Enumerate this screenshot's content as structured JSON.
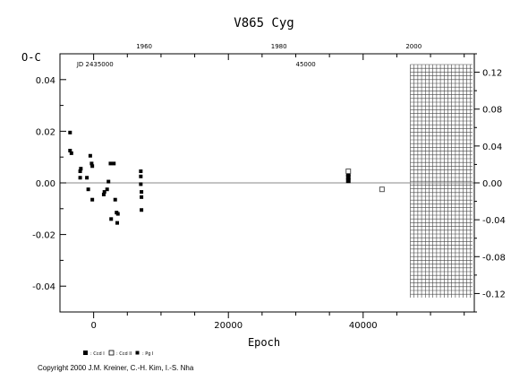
{
  "chart_data": {
    "type": "scatter",
    "title": "V865 Cyg",
    "xlabel": "Epoch",
    "ylabel": "O-C",
    "xlim": [
      -5000,
      56500
    ],
    "ylim": [
      -0.05,
      0.05
    ],
    "x_ticks": [
      0,
      20000,
      40000
    ],
    "y_ticks_left": [
      -0.04,
      -0.02,
      0.0,
      0.02,
      0.04
    ],
    "y_tick_labels_left": [
      "-0.04",
      "-0.02",
      "0.00",
      "0.02",
      "0.04"
    ],
    "right_axis_ylim": [
      -0.14,
      0.14
    ],
    "y_ticks_right": [
      -0.12,
      -0.08,
      -0.04,
      0.0,
      0.04,
      0.08,
      0.12
    ],
    "y_tick_labels_right": [
      "-0.12",
      "-0.08",
      "-0.04",
      "0.00",
      "0.04",
      "0.08",
      "0.12"
    ],
    "top_axis_labels": [
      {
        "label": "1960",
        "epoch": 7500
      },
      {
        "label": "1980",
        "epoch": 27500
      },
      {
        "label": "2000",
        "epoch": 47500
      }
    ],
    "top_axis_note": "JD 2435000",
    "top_axis_note_epoch": -2500,
    "top_axis_note2": "45000",
    "top_axis_note2_epoch": 30000,
    "hatched_region_start": 47000,
    "zero_line": 0.0,
    "grid": false,
    "legend": {
      "placement": "bottom-left",
      "entries": [
        {
          "marker": "filled-square",
          "label": ": Ccd I"
        },
        {
          "marker": "open-square",
          "label": ": Ccd II"
        },
        {
          "marker": "small-square",
          "label": ": Pg I"
        }
      ]
    },
    "series": [
      {
        "name": ": Pg I",
        "marker": "small-square",
        "points": [
          [
            -3500,
            0.0195
          ],
          [
            -3500,
            0.0125
          ],
          [
            -3300,
            0.0115
          ],
          [
            -2000,
            0.0045
          ],
          [
            -2000,
            0.002
          ],
          [
            -1900,
            0.0055
          ],
          [
            -1000,
            0.002
          ],
          [
            -800,
            -0.0025
          ],
          [
            -500,
            0.0105
          ],
          [
            -300,
            0.0075
          ],
          [
            -200,
            0.0065
          ],
          [
            -200,
            -0.0065
          ],
          [
            1500,
            -0.0045
          ],
          [
            1600,
            -0.0035
          ],
          [
            2000,
            -0.0025
          ],
          [
            2200,
            0.0005
          ],
          [
            2500,
            0.0075
          ],
          [
            2600,
            -0.014
          ],
          [
            3000,
            0.0075
          ],
          [
            3200,
            -0.0065
          ],
          [
            3400,
            -0.0115
          ],
          [
            3500,
            -0.0155
          ],
          [
            3600,
            -0.012
          ],
          [
            7000,
            0.0045
          ],
          [
            7000,
            0.0025
          ],
          [
            7000,
            -0.0005
          ],
          [
            7100,
            -0.0035
          ],
          [
            7100,
            -0.0055
          ],
          [
            7100,
            -0.0105
          ]
        ]
      },
      {
        "name": ": Ccd I",
        "marker": "filled-square",
        "points": [
          [
            37800,
            0.0035
          ],
          [
            37800,
            0.0022
          ],
          [
            37800,
            0.0008
          ]
        ]
      },
      {
        "name": ": Ccd II",
        "marker": "open-square",
        "points": [
          [
            37800,
            0.0045
          ],
          [
            42800,
            -0.0025
          ]
        ]
      }
    ]
  },
  "copyright": "Copyright 2000 J.M. Kreiner, C.-H. Kim, I.-S. Nha"
}
